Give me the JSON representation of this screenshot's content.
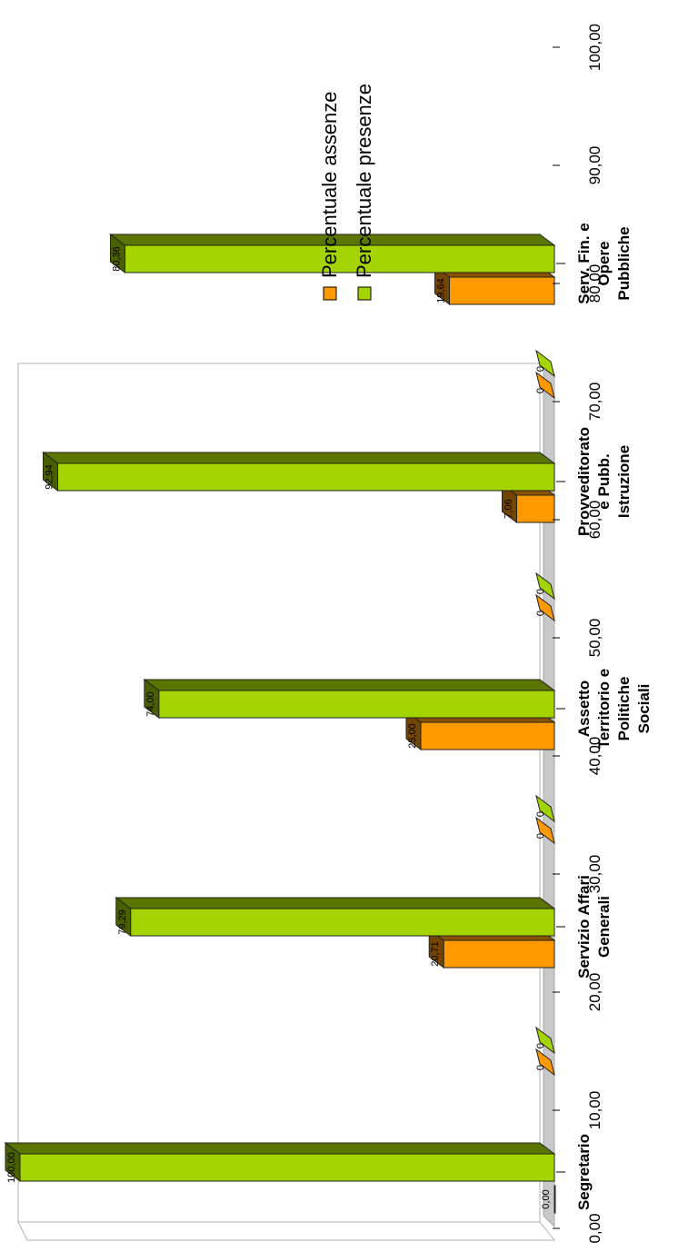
{
  "chart_data": {
    "type": "bar",
    "orientation": "rotated-90",
    "three_d": true,
    "title": "",
    "xlabel": "",
    "ylabel": "",
    "ylim": [
      0,
      100
    ],
    "ytick_labels": [
      "0,00",
      "10,00",
      "20,00",
      "30,00",
      "40,00",
      "50,00",
      "60,00",
      "70,00",
      "80,00",
      "90,00",
      "100,00"
    ],
    "grid": false,
    "legend_position": "top-right",
    "categories": [
      "Segretario",
      "Servizio Affari Generali",
      "Assetto Territorio e Politiche Sociali",
      "Provveditorato e Pubb. Istruzione",
      "Serv. Fin. e Opere Pubbliche"
    ],
    "category_lines": [
      [
        "Segretario"
      ],
      [
        "Servizio Affari",
        "Generali"
      ],
      [
        "Assetto",
        "Territorio e",
        "Politiche",
        "Sociali"
      ],
      [
        "Provveditorato",
        "e Pubb.",
        "Istruzione"
      ],
      [
        "Serv. Fin. e",
        "Opere",
        "Pubbliche"
      ]
    ],
    "gap_series_values": [
      0,
      0
    ],
    "gap_series_labels": [
      "0",
      "0"
    ],
    "series": [
      {
        "name": "Percentuale assenze",
        "color": "#ff9900",
        "values": [
          0.0,
          20.71,
          25.0,
          7.06,
          19.64
        ],
        "labels": [
          "0,00",
          "20,71",
          "25,00",
          "7,06",
          "19,64"
        ]
      },
      {
        "name": "Percentuale presenze",
        "color": "#a4d400",
        "values": [
          100.0,
          79.29,
          74.0,
          92.94,
          80.36
        ],
        "labels": [
          "100,00",
          "79,29",
          "74,00",
          "92,94",
          "80,36"
        ]
      }
    ]
  }
}
